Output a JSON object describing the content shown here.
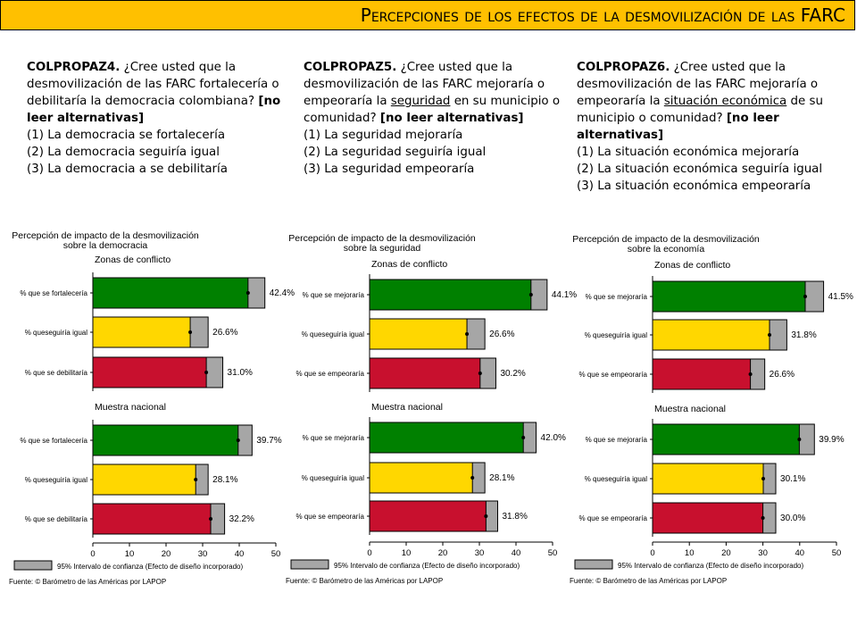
{
  "title": "Percepciones de los efectos de la desmovilización de las FARC",
  "questions": [
    {
      "code": "COLPROPAZ4.",
      "text_a": " ¿Cree usted que la desmovilización de las FARC fortalecería o debilitaría la democracia colombiana? ",
      "text_u": "",
      "text_b": "",
      "bold": "[no leer alternativas]",
      "options": [
        "(1) La democracia se fortalecería",
        "(2) La democracia seguiría igual",
        "(3) La democracia a se debilitaría"
      ]
    },
    {
      "code": "COLPROPAZ5.",
      "text_a": " ¿Cree usted que la desmovilización de las FARC mejoraría o empeoraría la ",
      "text_u": "seguridad",
      "text_b": " en su municipio o comunidad? ",
      "bold": "[no leer alternativas]",
      "options": [
        "(1) La seguridad mejoraría",
        "(2) La seguridad seguiría igual",
        "(3) La seguridad empeoraría"
      ]
    },
    {
      "code": "COLPROPAZ6.",
      "text_a": " ¿Cree usted que la desmovilización de las FARC mejoraría o empeoraría la ",
      "text_u": "situación económica",
      "text_b": " de su municipio o comunidad? ",
      "bold": "[no leer alternativas]",
      "options": [
        "(1) La situación económica mejoraría",
        "(2) La situación económica seguiría igual",
        "(3) La situación económica empeoraría"
      ]
    }
  ],
  "colors": {
    "title_bar": "#FFC000",
    "green": "#008000",
    "yellow": "#FFD700",
    "red": "#C8102E",
    "ci": "#A6A6A6"
  },
  "chart_data": [
    {
      "type": "bar",
      "title_lines": [
        "Percepción de impacto de la desmovilización",
        "sobre la democracia"
      ],
      "categories": [
        "% que se fortalecería",
        "% queseguiría igual",
        "% que se debilitaría"
      ],
      "series": [
        {
          "name": "Zonas de conflicto",
          "values": [
            42.4,
            26.6,
            31.0
          ],
          "ci": [
            [
              38,
              47
            ],
            [
              22,
              31.5
            ],
            [
              26.5,
              35.5
            ]
          ]
        },
        {
          "name": "Muestra nacional",
          "values": [
            39.7,
            28.1,
            32.2
          ],
          "ci": [
            [
              36,
              43.5
            ],
            [
              25,
              31.5
            ],
            [
              28.5,
              36
            ]
          ]
        }
      ],
      "value_labels": [
        [
          "42.4%",
          "26.6%",
          "31.0%"
        ],
        [
          "39.7%",
          "28.1%",
          "32.2%"
        ]
      ],
      "xlim": [
        0,
        50
      ],
      "xticks": [
        "0",
        "10",
        "20",
        "30",
        "40",
        "50"
      ],
      "legend": "95% Intervalo de confianza (Efecto de diseño incorporado)",
      "source": "Fuente: © Barómetro de las Américas por LAPOP"
    },
    {
      "type": "bar",
      "title_lines": [
        "Percepción de impacto de la desmovilización",
        "sobre la seguridad"
      ],
      "categories": [
        "% que se mejoraría",
        "% queseguiría igual",
        "% que se empeoraría"
      ],
      "series": [
        {
          "name": "Zonas de conflicto",
          "values": [
            44.1,
            26.6,
            30.2
          ],
          "ci": [
            [
              39.5,
              48.5
            ],
            [
              21.5,
              31.5
            ],
            [
              26,
              34.5
            ]
          ]
        },
        {
          "name": "Muestra nacional",
          "values": [
            42.0,
            28.1,
            31.8
          ],
          "ci": [
            [
              38,
              45.5
            ],
            [
              24.5,
              31.5
            ],
            [
              28.5,
              35
            ]
          ]
        }
      ],
      "value_labels": [
        [
          "44.1%",
          "26.6%",
          "30.2%"
        ],
        [
          "42.0%",
          "28.1%",
          "31.8%"
        ]
      ],
      "xlim": [
        0,
        50
      ],
      "xticks": [
        "0",
        "10",
        "20",
        "30",
        "40",
        "50"
      ],
      "legend": "95% Intervalo de confianza (Efecto de diseño incorporado)",
      "source": "Fuente: © Barómetro de las Américas por LAPOP"
    },
    {
      "type": "bar",
      "title_lines": [
        "Percepción de impacto de la desmovilización",
        "sobre la economía"
      ],
      "categories": [
        "% que se mejoraría",
        "% queseguiría igual",
        "% que se empeoraría"
      ],
      "series": [
        {
          "name": "Zonas de conflicto",
          "values": [
            41.5,
            31.8,
            26.6
          ],
          "ci": [
            [
              36.5,
              46.5
            ],
            [
              27,
              36.5
            ],
            [
              22.5,
              30.5
            ]
          ]
        },
        {
          "name": "Muestra nacional",
          "values": [
            39.9,
            30.1,
            30.0
          ],
          "ci": [
            [
              35.5,
              44
            ],
            [
              26.5,
              33.5
            ],
            [
              26.5,
              33.5
            ]
          ]
        }
      ],
      "value_labels": [
        [
          "41.5%",
          "31.8%",
          "26.6%"
        ],
        [
          "39.9%",
          "30.1%",
          "30.0%"
        ]
      ],
      "xlim": [
        0,
        50
      ],
      "xticks": [
        "0",
        "10",
        "20",
        "30",
        "40",
        "50"
      ],
      "legend": "95% Intervalo de confianza (Efecto de diseño incorporado)",
      "source": "Fuente: © Barómetro de las Américas por LAPOP"
    }
  ]
}
